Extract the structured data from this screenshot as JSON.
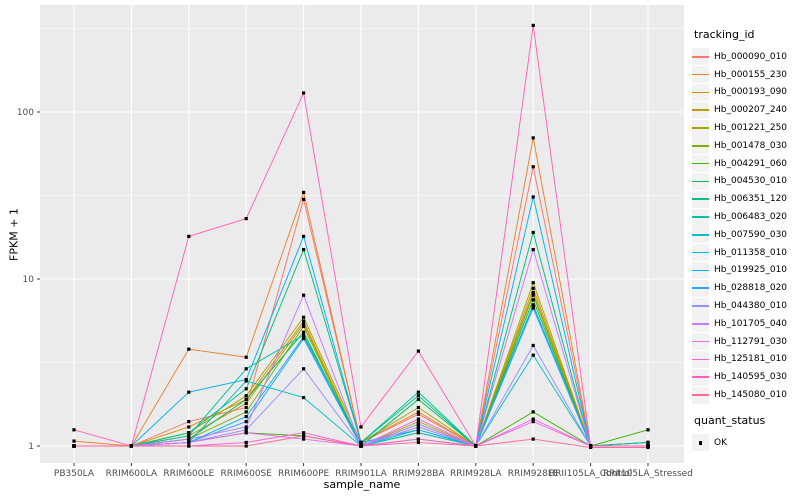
{
  "legend": {
    "tracking_title": "tracking_id",
    "quant_title": "quant_status",
    "quant_items": [
      {
        "label": "OK"
      }
    ]
  },
  "chart_data": {
    "type": "line",
    "title": "",
    "xlabel": "sample_name",
    "ylabel": "FPKM + 1",
    "y_scale": "log10",
    "ylim": [
      0.93,
      430
    ],
    "y_ticks": [
      {
        "label": "1",
        "value": 1
      },
      {
        "label": "10",
        "value": 10
      },
      {
        "label": "100",
        "value": 100
      }
    ],
    "grid": "major-and-minor-white-on-grey",
    "legend_position": "right",
    "point_marker": "black-square",
    "panel_background": "#EBEBEB",
    "categories": [
      "PB350LA",
      "RRIM600LA",
      "RRIM600LE",
      "RRIM600SE",
      "RRIM600PE",
      "RRIM901LA",
      "RRIM928BA",
      "RRIM928LA",
      "RRIM928LE",
      "RRII105LA_Control",
      "RRII105LA_Stressed"
    ],
    "series": [
      {
        "name": "Hb_000090_010",
        "color": "#F8766D",
        "values": [
          1.0,
          1.0,
          1.4,
          1.7,
          30,
          1.05,
          1.55,
          1.0,
          47,
          1.0,
          1.0
        ]
      },
      {
        "name": "Hb_000155_230",
        "color": "#EA8331",
        "values": [
          1.07,
          1.0,
          3.8,
          3.4,
          33,
          1.05,
          1.6,
          1.0,
          70,
          1.0,
          1.0
        ]
      },
      {
        "name": "Hb_000193_090",
        "color": "#D89000",
        "values": [
          1.0,
          1.0,
          1.3,
          1.9,
          5.6,
          1.0,
          1.2,
          1.0,
          8.8,
          1.0,
          1.0
        ]
      },
      {
        "name": "Hb_000207_240",
        "color": "#C09B00",
        "values": [
          1.0,
          1.0,
          1.15,
          1.8,
          5.4,
          1.0,
          1.4,
          1.0,
          8.3,
          1.0,
          1.0
        ]
      },
      {
        "name": "Hb_001221_250",
        "color": "#A3A500",
        "values": [
          1.0,
          1.0,
          1.2,
          2.0,
          5.9,
          1.05,
          1.7,
          1.0,
          9.5,
          1.0,
          1.0
        ]
      },
      {
        "name": "Hb_001478_030",
        "color": "#7CAE00",
        "values": [
          1.0,
          1.0,
          1.1,
          1.6,
          5.2,
          1.0,
          1.35,
          1.0,
          8.0,
          1.0,
          1.05
        ]
      },
      {
        "name": "Hb_004291_060",
        "color": "#39B600",
        "values": [
          1.0,
          1.0,
          1.05,
          1.2,
          1.15,
          1.0,
          1.1,
          1.0,
          1.6,
          1.0,
          1.25
        ]
      },
      {
        "name": "Hb_004530_010",
        "color": "#00BB4E",
        "values": [
          1.0,
          1.0,
          1.1,
          1.9,
          4.8,
          1.0,
          1.9,
          1.0,
          7.5,
          1.0,
          1.05
        ]
      },
      {
        "name": "Hb_006351_120",
        "color": "#00BF7D",
        "values": [
          1.0,
          1.0,
          1.2,
          2.2,
          15,
          1.05,
          2.0,
          1.0,
          19,
          1.0,
          1.0
        ]
      },
      {
        "name": "Hb_006483_020",
        "color": "#00C1A3",
        "values": [
          1.0,
          1.0,
          1.15,
          2.9,
          4.6,
          1.05,
          2.1,
          1.0,
          6.8,
          1.0,
          1.05
        ]
      },
      {
        "name": "Hb_007590_030",
        "color": "#00BFC4",
        "values": [
          1.0,
          1.0,
          1.05,
          2.45,
          1.95,
          1.0,
          1.2,
          1.0,
          3.5,
          1.0,
          1.0
        ]
      },
      {
        "name": "Hb_011358_010",
        "color": "#00BAE0",
        "values": [
          1.0,
          1.0,
          1.05,
          1.5,
          4.5,
          1.0,
          1.25,
          1.0,
          7.0,
          1.0,
          1.0
        ]
      },
      {
        "name": "Hb_019925_010",
        "color": "#00B0F6",
        "values": [
          1.0,
          1.0,
          2.1,
          2.5,
          18,
          1.05,
          1.25,
          1.0,
          31,
          1.0,
          1.0
        ]
      },
      {
        "name": "Hb_028818_020",
        "color": "#35A2FF",
        "values": [
          1.0,
          1.0,
          1.05,
          1.4,
          4.4,
          1.0,
          1.3,
          1.0,
          6.7,
          1.0,
          1.0
        ]
      },
      {
        "name": "Hb_044380_010",
        "color": "#9590FF",
        "values": [
          1.0,
          1.0,
          1.05,
          1.25,
          2.9,
          1.0,
          1.35,
          1.0,
          4.0,
          1.0,
          1.0
        ]
      },
      {
        "name": "Hb_101705_040",
        "color": "#C77CFF",
        "values": [
          1.0,
          1.0,
          1.1,
          1.3,
          8.0,
          1.0,
          1.3,
          1.0,
          15,
          1.0,
          1.0
        ]
      },
      {
        "name": "Hb_112791_030",
        "color": "#E76BF3",
        "values": [
          1.0,
          1.0,
          1.05,
          1.2,
          1.1,
          1.0,
          1.45,
          1.0,
          1.45,
          1.0,
          1.0
        ]
      },
      {
        "name": "Hb_125181_010",
        "color": "#FA62DB",
        "values": [
          1.0,
          1.0,
          1.0,
          1.05,
          1.2,
          1.0,
          1.1,
          1.0,
          1.4,
          1.0,
          1.0
        ]
      },
      {
        "name": "Hb_140595_030",
        "color": "#FF62BC",
        "values": [
          1.25,
          1.0,
          18,
          23,
          130,
          1.3,
          3.7,
          1.0,
          330,
          1.0,
          1.0
        ]
      },
      {
        "name": "Hb_145080_010",
        "color": "#FF6A98",
        "values": [
          1.0,
          1.0,
          1.0,
          1.0,
          1.15,
          1.0,
          1.05,
          1.0,
          1.1,
          0.98,
          0.98
        ]
      }
    ]
  }
}
